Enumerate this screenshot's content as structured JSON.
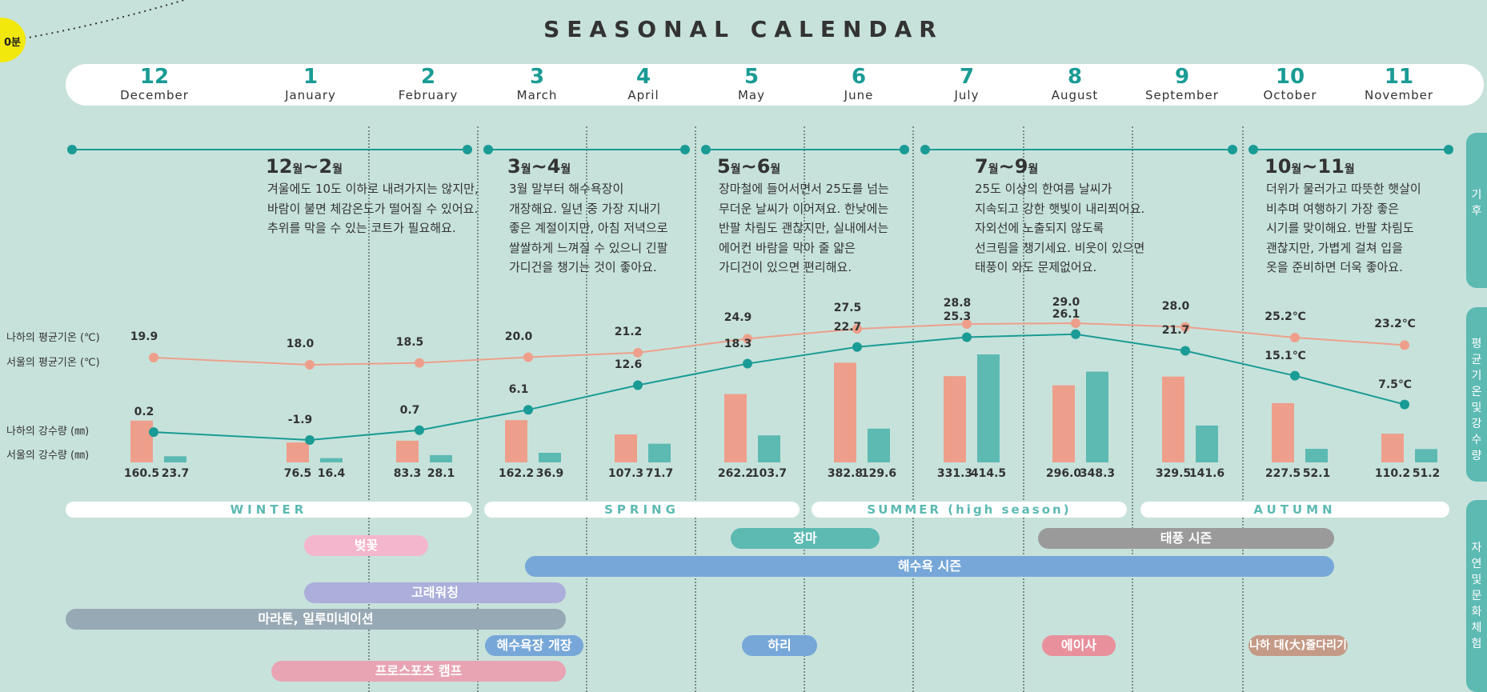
{
  "title": "SEASONAL CALENDAR",
  "badge": "0분",
  "months": [
    {
      "num": "12",
      "name": "December"
    },
    {
      "num": "1",
      "name": "January"
    },
    {
      "num": "2",
      "name": "February"
    },
    {
      "num": "3",
      "name": "March"
    },
    {
      "num": "4",
      "name": "April"
    },
    {
      "num": "5",
      "name": "May"
    },
    {
      "num": "6",
      "name": "June"
    },
    {
      "num": "7",
      "name": "July"
    },
    {
      "num": "8",
      "name": "August"
    },
    {
      "num": "9",
      "name": "September"
    },
    {
      "num": "10",
      "name": "October"
    },
    {
      "num": "11",
      "name": "November"
    }
  ],
  "climate": [
    {
      "m1": "12",
      "m2": "2",
      "unit": "월",
      "text": "겨울에도 10도 이하로 내려가지는 않지만,\n바람이 불면 체감온도가 떨어질 수 있어요.\n추위를 막을 수 있는 코트가 필요해요."
    },
    {
      "m1": "3",
      "m2": "4",
      "unit": "월",
      "text": "3월 말부터 해수욕장이\n개장해요. 일년 중 가장 지내기\n좋은 계절이지만, 아침 저녁으로\n쌀쌀하게 느껴질 수 있으니 긴팔\n가디건을 챙기는 것이 좋아요."
    },
    {
      "m1": "5",
      "m2": "6",
      "unit": "월",
      "text": "장마철에 들어서면서 25도를 넘는\n무더운 날씨가 이어져요. 한낮에는\n반팔 차림도 괜찮지만, 실내에서는\n에어컨 바람을 막아 줄 얇은\n가디건이 있으면 편리해요."
    },
    {
      "m1": "7",
      "m2": "9",
      "unit": "월",
      "text": "25도 이상의 한여름 날씨가\n지속되고 강한 햇빛이 내리쬐어요.\n자외선에 노출되지 않도록\n선크림을 챙기세요. 비웃이 있으면\n태풍이 와도 문제없어요."
    },
    {
      "m1": "10",
      "m2": "11",
      "unit": "월",
      "text": "더위가 물러가고 따뜻한 햇살이\n비추며 여행하기 가장 좋은\n시기를 맞이해요. 반팔 차림도\n괜찮지만, 가볍게 걸쳐 입을\n옷을 준비하면 더욱 좋아요."
    }
  ],
  "side_tabs": {
    "climate": [
      "기",
      "후"
    ],
    "temp": [
      "평",
      "균",
      "기",
      "온",
      "및",
      "강",
      "수",
      "량"
    ],
    "nature": [
      "자",
      "연",
      "및",
      "문",
      "화",
      "체",
      "험"
    ]
  },
  "legend": {
    "naha_temp": "나하의 평균기온 (℃)",
    "seoul_temp": "서울의 평균기온 (℃)",
    "naha_rain": "나하의 강수량 (㎜)",
    "seoul_rain": "서울의 강수량 (㎜)"
  },
  "chart_data": {
    "type": "bar",
    "categories": [
      "12",
      "1",
      "2",
      "3",
      "4",
      "5",
      "6",
      "7",
      "8",
      "9",
      "10",
      "11"
    ],
    "series": [
      {
        "name": "나하의 평균기온 (℃)",
        "kind": "line",
        "color": "#ee9f8b",
        "values": [
          19.9,
          18.0,
          18.5,
          20.0,
          21.2,
          24.9,
          27.5,
          28.8,
          29.0,
          28.0,
          25.2,
          23.2
        ],
        "labels": [
          "19.9",
          "18.0",
          "18.5",
          "20.0",
          "21.2",
          "24.9",
          "27.5",
          "28.8",
          "29.0",
          "28.0",
          "25.2℃",
          "23.2℃"
        ]
      },
      {
        "name": "서울의 평균기온 (℃)",
        "kind": "line",
        "color": "#1a9b95",
        "values": [
          0.2,
          -1.9,
          0.7,
          6.1,
          12.6,
          18.3,
          22.7,
          25.3,
          26.1,
          21.7,
          15.1,
          7.5
        ],
        "labels": [
          "0.2",
          "-1.9",
          "0.7",
          "6.1",
          "12.6",
          "18.3",
          "22.7",
          "25.3",
          "26.1",
          "21.7",
          "15.1℃",
          "7.5℃"
        ]
      },
      {
        "name": "나하의 강수량 (㎜)",
        "kind": "bar",
        "color": "#ee9f8b",
        "values": [
          160.5,
          76.5,
          83.3,
          162.2,
          107.3,
          262.2,
          382.8,
          331.3,
          296.0,
          329.5,
          227.5,
          110.2
        ],
        "labels": [
          "160.5",
          "76.5",
          "83.3",
          "162.2",
          "107.3",
          "262.2",
          "382.8",
          "331.3",
          "296.0",
          "329.5",
          "227.5",
          "110.2"
        ]
      },
      {
        "name": "서울의 강수량 (㎜)",
        "kind": "bar",
        "color": "#5cbab3",
        "values": [
          23.7,
          16.4,
          28.1,
          36.9,
          71.7,
          103.7,
          129.6,
          414.5,
          348.3,
          141.6,
          52.1,
          51.2
        ],
        "labels": [
          "23.7",
          "16.4",
          "28.1",
          "36.9",
          "71.7",
          "103.7",
          "129.6",
          "414.5",
          "348.3",
          "141.6",
          "52.1",
          "51.2"
        ]
      }
    ]
  },
  "seasons": [
    "WINTER",
    "SPRING",
    "SUMMER (high season)",
    "AUTUMN"
  ],
  "events": [
    {
      "label": "벚꽃",
      "color": "#f4b6cc"
    },
    {
      "label": "장마",
      "color": "#5cbab3"
    },
    {
      "label": "태풍 시즌",
      "color": "#9a9a9a"
    },
    {
      "label": "해수욕 시즌",
      "color": "#76a7d8"
    },
    {
      "label": "고래워칭",
      "color": "#acaedb"
    },
    {
      "label": "마라톤, 일루미네이션",
      "color": "#97a9b4"
    },
    {
      "label": "해수욕장 개장",
      "color": "#76a7d8"
    },
    {
      "label": "하리",
      "color": "#76a7d8"
    },
    {
      "label": "에이사",
      "color": "#e8909c"
    },
    {
      "label": "나하 대(大)줄다리기",
      "color": "#c49a86"
    },
    {
      "label": "프로스포츠 캠프",
      "color": "#e8a4b3"
    }
  ]
}
